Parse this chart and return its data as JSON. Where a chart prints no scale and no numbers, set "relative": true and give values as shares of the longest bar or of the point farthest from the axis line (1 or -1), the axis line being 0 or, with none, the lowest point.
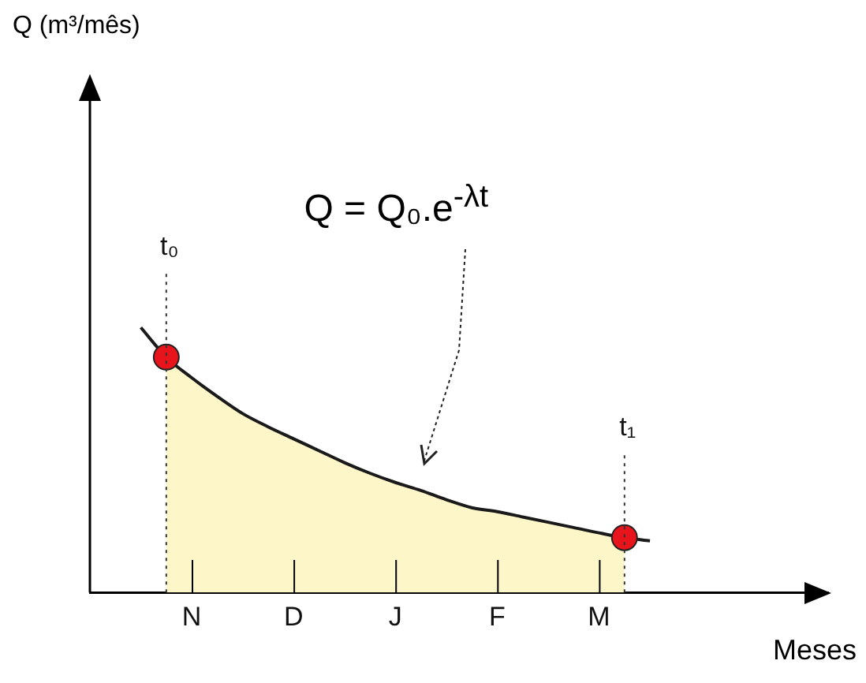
{
  "chart_data": {
    "type": "line",
    "relative": true,
    "xlabel": "Meses",
    "marker": "none",
    "categories": [
      null,
      null,
      null,
      null,
      "N",
      null,
      null,
      null,
      "D",
      null,
      null,
      null,
      "J",
      null,
      null,
      null,
      "F",
      null,
      null,
      null,
      "M",
      null,
      null,
      null,
      null,
      null,
      null,
      null,
      null,
      null
    ],
    "series": [
      {
        "type": "area",
        "color": "#fdf6c9",
        "values": [
          null,
          null,
          null,
          0.888,
          0.81,
          0.74,
          0.675,
          0.625,
          0.58,
          0.535,
          0.49,
          0.45,
          0.415,
          0.385,
          0.35,
          0.32,
          0.305,
          0.285,
          0.265,
          0.245,
          0.225,
          0.207,
          null,
          null,
          null,
          null,
          null,
          null,
          null,
          null
        ]
      },
      {
        "color": "#1a1a1a",
        "values": [
          null,
          null,
          1.0,
          0.888,
          0.81,
          0.74,
          0.675,
          0.625,
          0.58,
          0.535,
          0.49,
          0.45,
          0.415,
          0.385,
          0.35,
          0.32,
          0.305,
          0.285,
          0.265,
          0.245,
          0.225,
          0.207,
          0.195,
          null,
          null,
          null,
          null,
          null,
          null,
          null
        ]
      },
      {
        "type": "scatter",
        "color": "#e8141c",
        "marker": "circle",
        "values": [
          null,
          null,
          null,
          0.888,
          null,
          null,
          null,
          null,
          null,
          null,
          null,
          null,
          null,
          null,
          null,
          null,
          null,
          null,
          null,
          null,
          null,
          0.207,
          null,
          null,
          null,
          null,
          null,
          null,
          null,
          null
        ]
      }
    ],
    "annotations": [
      "Q (m³/mês)",
      "Q = Q₀.e$^{-λt}$",
      "t₀",
      "t₁"
    ]
  }
}
